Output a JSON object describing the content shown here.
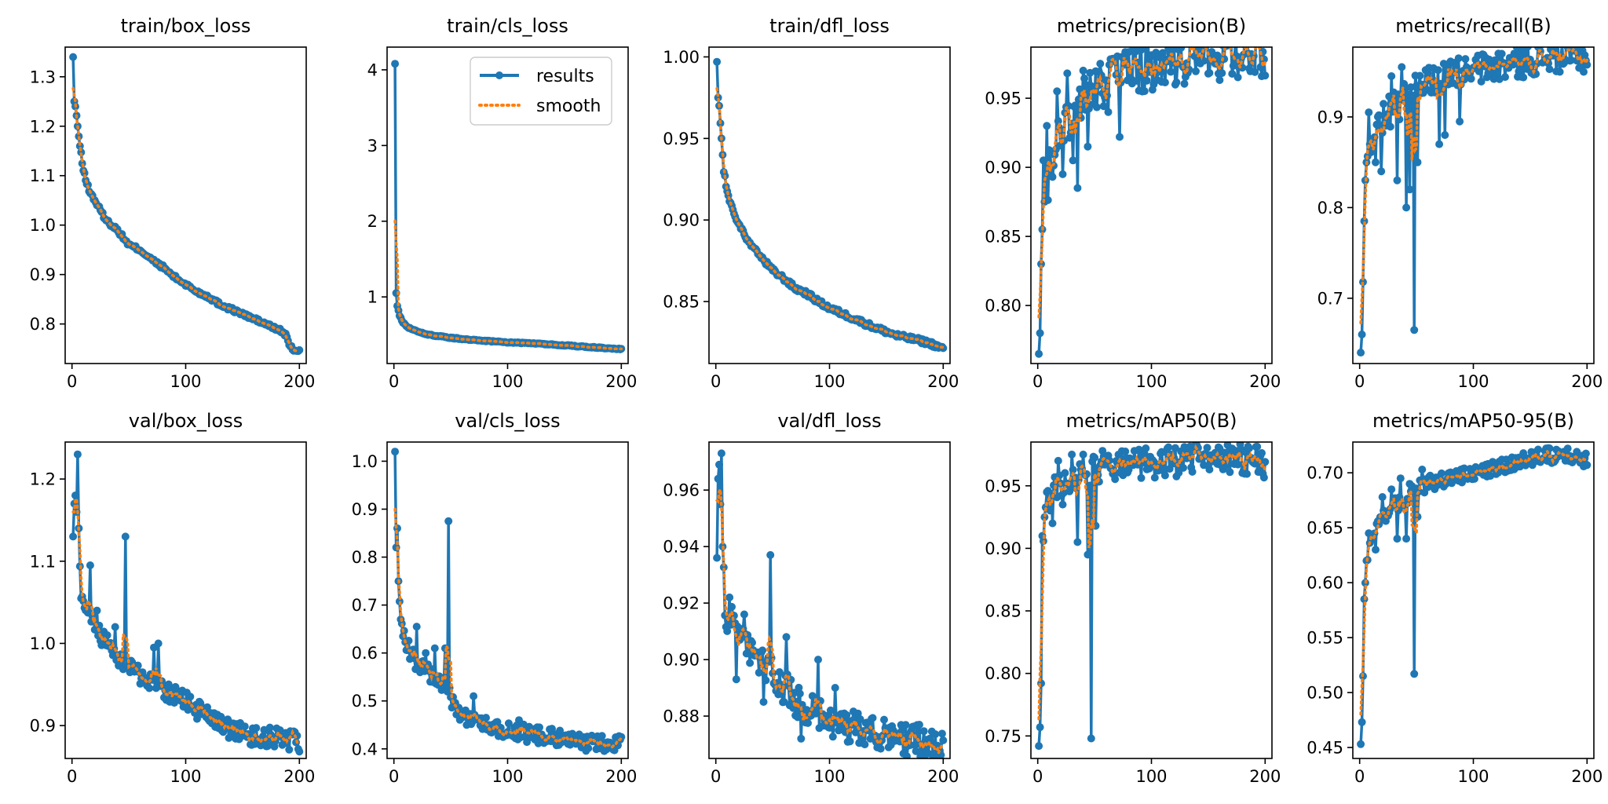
{
  "chart_data": [
    {
      "type": "line",
      "title": "train/box_loss",
      "xlim": [
        -6,
        206
      ],
      "ylim": [
        0.72,
        1.36
      ],
      "xticks": [
        0,
        100,
        200
      ],
      "yticks": [
        0.8,
        0.9,
        1.0,
        1.1,
        1.2,
        1.3
      ],
      "yticklabels": [
        "0.8",
        "0.9",
        "1.0",
        "1.1",
        "1.2",
        "1.3"
      ],
      "keypoints": [
        [
          1,
          1.34
        ],
        [
          2,
          1.25
        ],
        [
          3,
          1.24
        ],
        [
          5,
          1.2
        ],
        [
          7,
          1.16
        ],
        [
          10,
          1.11
        ],
        [
          15,
          1.07
        ],
        [
          20,
          1.05
        ],
        [
          30,
          1.01
        ],
        [
          40,
          0.99
        ],
        [
          50,
          0.96
        ],
        [
          60,
          0.95
        ],
        [
          70,
          0.93
        ],
        [
          80,
          0.915
        ],
        [
          90,
          0.895
        ],
        [
          100,
          0.88
        ],
        [
          110,
          0.865
        ],
        [
          120,
          0.855
        ],
        [
          130,
          0.84
        ],
        [
          140,
          0.83
        ],
        [
          150,
          0.82
        ],
        [
          160,
          0.81
        ],
        [
          170,
          0.8
        ],
        [
          180,
          0.79
        ],
        [
          185,
          0.785
        ],
        [
          189,
          0.775
        ],
        [
          191,
          0.755
        ],
        [
          195,
          0.748
        ],
        [
          200,
          0.745
        ]
      ],
      "noise": 0.004,
      "outliers": []
    },
    {
      "type": "line",
      "title": "train/cls_loss",
      "xlim": [
        -6,
        206
      ],
      "ylim": [
        0.12,
        4.3
      ],
      "xticks": [
        0,
        100,
        200
      ],
      "yticks": [
        1,
        2,
        3,
        4
      ],
      "yticklabels": [
        "1",
        "2",
        "3",
        "4"
      ],
      "keypoints": [
        [
          1,
          4.08
        ],
        [
          2,
          1.05
        ],
        [
          3,
          0.88
        ],
        [
          5,
          0.75
        ],
        [
          8,
          0.66
        ],
        [
          12,
          0.6
        ],
        [
          20,
          0.55
        ],
        [
          30,
          0.5
        ],
        [
          50,
          0.46
        ],
        [
          70,
          0.43
        ],
        [
          100,
          0.4
        ],
        [
          130,
          0.38
        ],
        [
          160,
          0.35
        ],
        [
          190,
          0.32
        ],
        [
          200,
          0.31
        ]
      ],
      "noise": 0.007,
      "outliers": []
    },
    {
      "type": "line",
      "title": "train/dfl_loss",
      "xlim": [
        -6,
        206
      ],
      "ylim": [
        0.812,
        1.006
      ],
      "xticks": [
        0,
        100,
        200
      ],
      "yticks": [
        0.85,
        0.9,
        0.95,
        1.0
      ],
      "yticklabels": [
        "0.85",
        "0.90",
        "0.95",
        "1.00"
      ],
      "keypoints": [
        [
          1,
          0.997
        ],
        [
          2,
          0.975
        ],
        [
          3,
          0.97
        ],
        [
          5,
          0.95
        ],
        [
          7,
          0.93
        ],
        [
          10,
          0.917
        ],
        [
          15,
          0.905
        ],
        [
          20,
          0.898
        ],
        [
          30,
          0.885
        ],
        [
          40,
          0.877
        ],
        [
          50,
          0.869
        ],
        [
          60,
          0.864
        ],
        [
          70,
          0.858
        ],
        [
          80,
          0.855
        ],
        [
          90,
          0.85
        ],
        [
          100,
          0.846
        ],
        [
          120,
          0.84
        ],
        [
          140,
          0.834
        ],
        [
          160,
          0.829
        ],
        [
          180,
          0.826
        ],
        [
          190,
          0.824
        ],
        [
          200,
          0.821
        ]
      ],
      "noise": 0.0015,
      "outliers": []
    },
    {
      "type": "line",
      "title": "metrics/precision(B)",
      "xlim": [
        -6,
        206
      ],
      "ylim": [
        0.758,
        0.987
      ],
      "xticks": [
        0,
        100,
        200
      ],
      "yticks": [
        0.8,
        0.85,
        0.9,
        0.95
      ],
      "yticklabels": [
        "0.80",
        "0.85",
        "0.90",
        "0.95"
      ],
      "keypoints": [
        [
          1,
          0.765
        ],
        [
          2,
          0.78
        ],
        [
          3,
          0.83
        ],
        [
          4,
          0.855
        ],
        [
          6,
          0.875
        ],
        [
          10,
          0.9
        ],
        [
          15,
          0.915
        ],
        [
          20,
          0.925
        ],
        [
          30,
          0.94
        ],
        [
          40,
          0.948
        ],
        [
          50,
          0.955
        ],
        [
          60,
          0.962
        ],
        [
          80,
          0.97
        ],
        [
          100,
          0.974
        ],
        [
          130,
          0.978
        ],
        [
          160,
          0.981
        ],
        [
          180,
          0.983
        ],
        [
          200,
          0.982
        ]
      ],
      "noise": 0.018,
      "outliers": [
        [
          5,
          0.905
        ],
        [
          8,
          0.93
        ],
        [
          13,
          0.893
        ],
        [
          17,
          0.955
        ],
        [
          22,
          0.895
        ],
        [
          26,
          0.968
        ],
        [
          31,
          0.905
        ],
        [
          35,
          0.885
        ],
        [
          40,
          0.97
        ],
        [
          44,
          0.915
        ],
        [
          55,
          0.975
        ],
        [
          62,
          0.94
        ],
        [
          72,
          0.922
        ]
      ]
    },
    {
      "type": "line",
      "title": "metrics/recall(B)",
      "xlim": [
        -6,
        206
      ],
      "ylim": [
        0.628,
        0.977
      ],
      "xticks": [
        0,
        100,
        200
      ],
      "yticks": [
        0.7,
        0.8,
        0.9
      ],
      "yticklabels": [
        "0.7",
        "0.8",
        "0.9"
      ],
      "keypoints": [
        [
          1,
          0.64
        ],
        [
          2,
          0.66
        ],
        [
          3,
          0.718
        ],
        [
          4,
          0.785
        ],
        [
          6,
          0.85
        ],
        [
          10,
          0.87
        ],
        [
          15,
          0.885
        ],
        [
          20,
          0.9
        ],
        [
          30,
          0.91
        ],
        [
          40,
          0.92
        ],
        [
          50,
          0.93
        ],
        [
          60,
          0.938
        ],
        [
          80,
          0.945
        ],
        [
          100,
          0.952
        ],
        [
          130,
          0.958
        ],
        [
          160,
          0.965
        ],
        [
          180,
          0.968
        ],
        [
          200,
          0.965
        ]
      ],
      "noise": 0.018,
      "outliers": [
        [
          8,
          0.905
        ],
        [
          14,
          0.85
        ],
        [
          19,
          0.84
        ],
        [
          28,
          0.945
        ],
        [
          33,
          0.83
        ],
        [
          37,
          0.955
        ],
        [
          41,
          0.8
        ],
        [
          44,
          0.82
        ],
        [
          48,
          0.665
        ],
        [
          51,
          0.85
        ],
        [
          70,
          0.87
        ],
        [
          75,
          0.88
        ],
        [
          88,
          0.895
        ]
      ]
    },
    {
      "type": "line",
      "title": "val/box_loss",
      "xlim": [
        -6,
        206
      ],
      "ylim": [
        0.86,
        1.245
      ],
      "xticks": [
        0,
        100,
        200
      ],
      "yticks": [
        0.9,
        1.0,
        1.1,
        1.2
      ],
      "yticklabels": [
        "0.9",
        "1.0",
        "1.1",
        "1.2"
      ],
      "keypoints": [
        [
          1,
          1.13
        ],
        [
          2,
          1.17
        ],
        [
          3,
          1.18
        ],
        [
          4,
          1.16
        ],
        [
          5,
          1.23
        ],
        [
          6,
          1.14
        ],
        [
          8,
          1.065
        ],
        [
          12,
          1.04
        ],
        [
          20,
          1.02
        ],
        [
          30,
          1.0
        ],
        [
          40,
          0.985
        ],
        [
          50,
          0.97
        ],
        [
          60,
          0.96
        ],
        [
          80,
          0.945
        ],
        [
          100,
          0.93
        ],
        [
          120,
          0.91
        ],
        [
          140,
          0.895
        ],
        [
          160,
          0.887
        ],
        [
          180,
          0.885
        ],
        [
          190,
          0.882
        ],
        [
          200,
          0.88
        ]
      ],
      "noise": 0.012,
      "outliers": [
        [
          16,
          1.095
        ],
        [
          22,
          1.04
        ],
        [
          31,
          1.01
        ],
        [
          38,
          1.02
        ],
        [
          47,
          1.13
        ],
        [
          72,
          0.995
        ],
        [
          76,
          1.0
        ]
      ]
    },
    {
      "type": "line",
      "title": "val/cls_loss",
      "xlim": [
        -6,
        206
      ],
      "ylim": [
        0.38,
        1.04
      ],
      "xticks": [
        0,
        100,
        200
      ],
      "yticks": [
        0.4,
        0.5,
        0.6,
        0.7,
        0.8,
        0.9,
        1.0
      ],
      "yticklabels": [
        "0.4",
        "0.5",
        "0.6",
        "0.7",
        "0.8",
        "0.9",
        "1.0"
      ],
      "keypoints": [
        [
          1,
          1.02
        ],
        [
          2,
          0.82
        ],
        [
          3,
          0.86
        ],
        [
          4,
          0.75
        ],
        [
          6,
          0.67
        ],
        [
          10,
          0.62
        ],
        [
          20,
          0.58
        ],
        [
          30,
          0.56
        ],
        [
          40,
          0.54
        ],
        [
          47,
          0.53
        ],
        [
          50,
          0.5
        ],
        [
          60,
          0.47
        ],
        [
          80,
          0.45
        ],
        [
          100,
          0.44
        ],
        [
          120,
          0.43
        ],
        [
          140,
          0.425
        ],
        [
          160,
          0.415
        ],
        [
          180,
          0.41
        ],
        [
          200,
          0.41
        ]
      ],
      "noise": 0.018,
      "outliers": [
        [
          20,
          0.655
        ],
        [
          28,
          0.6
        ],
        [
          36,
          0.61
        ],
        [
          45,
          0.61
        ],
        [
          48,
          0.875
        ],
        [
          70,
          0.51
        ],
        [
          110,
          0.46
        ]
      ]
    },
    {
      "type": "line",
      "title": "val/dfl_loss",
      "xlim": [
        -6,
        206
      ],
      "ylim": [
        0.865,
        0.977
      ],
      "xticks": [
        0,
        100,
        200
      ],
      "yticks": [
        0.88,
        0.9,
        0.92,
        0.94,
        0.96
      ],
      "yticklabels": [
        "0.88",
        "0.90",
        "0.92",
        "0.94",
        "0.96"
      ],
      "keypoints": [
        [
          1,
          0.936
        ],
        [
          2,
          0.964
        ],
        [
          3,
          0.969
        ],
        [
          4,
          0.955
        ],
        [
          5,
          0.973
        ],
        [
          6,
          0.94
        ],
        [
          8,
          0.92
        ],
        [
          10,
          0.915
        ],
        [
          20,
          0.91
        ],
        [
          30,
          0.902
        ],
        [
          40,
          0.9
        ],
        [
          50,
          0.895
        ],
        [
          60,
          0.89
        ],
        [
          80,
          0.882
        ],
        [
          100,
          0.879
        ],
        [
          120,
          0.876
        ],
        [
          140,
          0.874
        ],
        [
          160,
          0.872
        ],
        [
          180,
          0.871
        ],
        [
          200,
          0.87
        ]
      ],
      "noise": 0.006,
      "outliers": [
        [
          12,
          0.922
        ],
        [
          18,
          0.893
        ],
        [
          25,
          0.916
        ],
        [
          32,
          0.906
        ],
        [
          42,
          0.885
        ],
        [
          48,
          0.937
        ],
        [
          62,
          0.908
        ],
        [
          75,
          0.872
        ],
        [
          90,
          0.9
        ],
        [
          105,
          0.89
        ]
      ]
    },
    {
      "type": "line",
      "title": "metrics/mAP50(B)",
      "xlim": [
        -6,
        206
      ],
      "ylim": [
        0.732,
        0.985
      ],
      "xticks": [
        0,
        100,
        200
      ],
      "yticks": [
        0.75,
        0.8,
        0.85,
        0.9,
        0.95
      ],
      "yticklabels": [
        "0.75",
        "0.80",
        "0.85",
        "0.90",
        "0.95"
      ],
      "keypoints": [
        [
          1,
          0.742
        ],
        [
          2,
          0.757
        ],
        [
          3,
          0.792
        ],
        [
          4,
          0.91
        ],
        [
          6,
          0.925
        ],
        [
          10,
          0.94
        ],
        [
          20,
          0.95
        ],
        [
          30,
          0.955
        ],
        [
          40,
          0.958
        ],
        [
          50,
          0.962
        ],
        [
          60,
          0.965
        ],
        [
          80,
          0.967
        ],
        [
          100,
          0.968
        ],
        [
          130,
          0.97
        ],
        [
          160,
          0.972
        ],
        [
          180,
          0.972
        ],
        [
          200,
          0.968
        ]
      ],
      "noise": 0.012,
      "outliers": [
        [
          8,
          0.945
        ],
        [
          13,
          0.92
        ],
        [
          18,
          0.97
        ],
        [
          22,
          0.935
        ],
        [
          30,
          0.975
        ],
        [
          35,
          0.905
        ],
        [
          40,
          0.975
        ],
        [
          44,
          0.895
        ],
        [
          47,
          0.748
        ],
        [
          51,
          0.918
        ],
        [
          57,
          0.978
        ],
        [
          85,
          0.978
        ],
        [
          95,
          0.98
        ]
      ]
    },
    {
      "type": "line",
      "title": "metrics/mAP50-95(B)",
      "xlim": [
        -6,
        206
      ],
      "ylim": [
        0.44,
        0.728
      ],
      "xticks": [
        0,
        100,
        200
      ],
      "yticks": [
        0.45,
        0.5,
        0.55,
        0.6,
        0.65,
        0.7
      ],
      "yticklabels": [
        "0.45",
        "0.50",
        "0.55",
        "0.60",
        "0.65",
        "0.70"
      ],
      "keypoints": [
        [
          1,
          0.453
        ],
        [
          2,
          0.473
        ],
        [
          3,
          0.515
        ],
        [
          4,
          0.585
        ],
        [
          6,
          0.62
        ],
        [
          10,
          0.64
        ],
        [
          20,
          0.66
        ],
        [
          30,
          0.67
        ],
        [
          40,
          0.675
        ],
        [
          50,
          0.685
        ],
        [
          60,
          0.69
        ],
        [
          80,
          0.695
        ],
        [
          100,
          0.7
        ],
        [
          120,
          0.705
        ],
        [
          140,
          0.71
        ],
        [
          160,
          0.715
        ],
        [
          180,
          0.717
        ],
        [
          200,
          0.711
        ]
      ],
      "noise": 0.007,
      "outliers": [
        [
          8,
          0.645
        ],
        [
          14,
          0.63
        ],
        [
          20,
          0.678
        ],
        [
          28,
          0.685
        ],
        [
          33,
          0.64
        ],
        [
          36,
          0.695
        ],
        [
          41,
          0.64
        ],
        [
          44,
          0.69
        ],
        [
          48,
          0.517
        ],
        [
          51,
          0.66
        ],
        [
          55,
          0.703
        ]
      ]
    }
  ],
  "legend": {
    "results_label": "results",
    "smooth_label": "smooth"
  },
  "colors": {
    "results": "#1f77b4",
    "smooth": "#ff7f0e"
  }
}
